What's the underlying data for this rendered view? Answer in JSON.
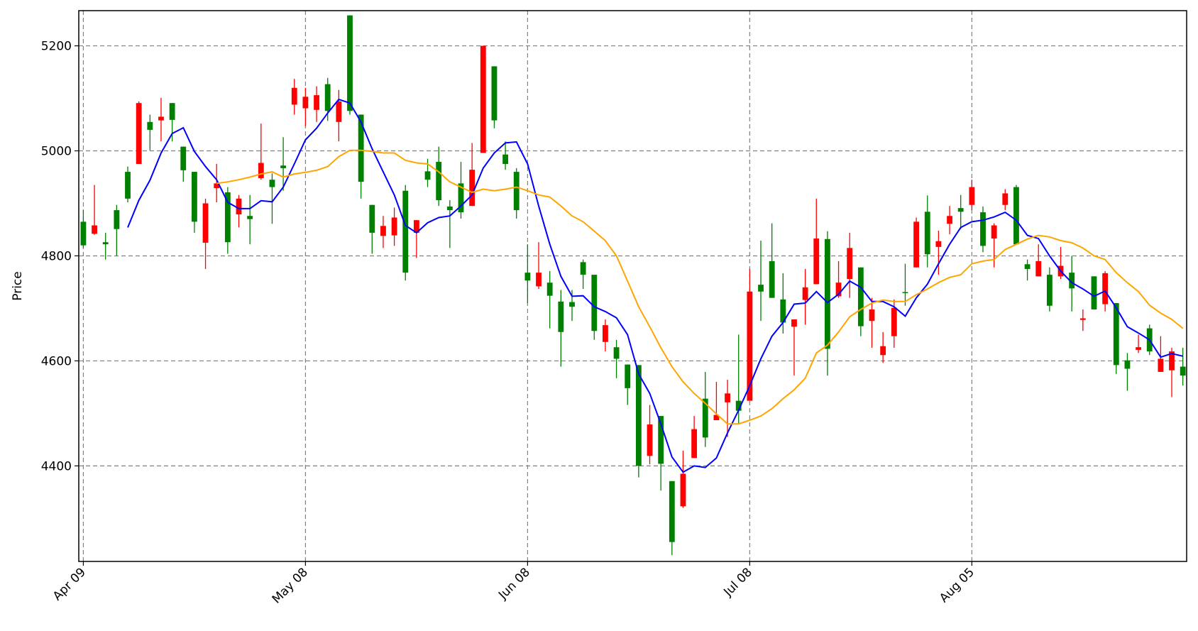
{
  "chart_data": {
    "type": "candlestick",
    "ylabel": "Price",
    "categories": [
      "Apr 09",
      null,
      null,
      null,
      null,
      null,
      null,
      null,
      null,
      null,
      null,
      null,
      null,
      null,
      null,
      null,
      null,
      null,
      null,
      null,
      "May 08",
      null,
      null,
      null,
      null,
      null,
      null,
      null,
      null,
      null,
      null,
      null,
      null,
      null,
      null,
      null,
      null,
      null,
      null,
      null,
      "Jun 08",
      null,
      null,
      null,
      null,
      null,
      null,
      null,
      null,
      null,
      null,
      null,
      null,
      null,
      null,
      null,
      null,
      null,
      null,
      null,
      "Jul 08",
      null,
      null,
      null,
      null,
      null,
      null,
      null,
      null,
      null,
      null,
      null,
      null,
      null,
      null,
      null,
      null,
      null,
      null,
      null,
      "Aug 05",
      null,
      null,
      null,
      null,
      null,
      null,
      null,
      null,
      null,
      null,
      null,
      null,
      null,
      null,
      null,
      null,
      null,
      null,
      null
    ],
    "open": [
      4820,
      4858,
      4822,
      4851,
      4909,
      5091,
      5040,
      5065,
      5059,
      4963,
      4865,
      4900,
      4938,
      4826,
      4909,
      4870,
      4977,
      4931,
      4967,
      5120,
      5103,
      5106,
      5076,
      5094,
      5076,
      4941,
      4844,
      4857,
      4873,
      4768,
      4868,
      4945,
      4906,
      4887,
      4883,
      4964,
      5200,
      5058,
      4975,
      4887,
      4753,
      4768,
      4724,
      4655,
      4703,
      4764,
      4657,
      4668,
      4604,
      4548,
      4400,
      4479,
      4404,
      4255,
      4385,
      4470,
      4454,
      4497,
      4538,
      4505,
      4732,
      4732,
      4720,
      4673,
      4679,
      4740,
      4833,
      4623,
      4749,
      4815,
      4666,
      4698,
      4628,
      4701,
      4729,
      4865,
      4803,
      4828,
      4876,
      4884,
      4931,
      4819,
      4858,
      4919,
      4822,
      4775,
      4790,
      4705,
      4781,
      4738,
      4681,
      4698,
      4767,
      4592,
      4585,
      4626,
      4618,
      4604,
      4618,
      4572
    ],
    "high": [
      4887,
      4935,
      4844,
      4897,
      4970,
      5094,
      5069,
      5101,
      5091,
      5008,
      4960,
      4909,
      4975,
      4931,
      4916,
      4916,
      5052,
      4957,
      5026,
      5137,
      5120,
      5123,
      5139,
      5116,
      5258,
      5069,
      4897,
      4876,
      4892,
      4935,
      4868,
      4985,
      5008,
      4906,
      4979,
      5015,
      5200,
      5161,
      5018,
      4967,
      4822,
      4826,
      4771,
      4735,
      4735,
      4793,
      4764,
      4679,
      4640,
      4593,
      4592,
      4516,
      4495,
      4371,
      4429,
      4495,
      4579,
      4560,
      4564,
      4650,
      4775,
      4829,
      4862,
      4767,
      4679,
      4775,
      4909,
      4847,
      4790,
      4844,
      4778,
      4720,
      4655,
      4717,
      4785,
      4873,
      4915,
      4848,
      4895,
      4916,
      4945,
      4894,
      4862,
      4927,
      4935,
      4793,
      4822,
      4778,
      4817,
      4800,
      4698,
      4761,
      4771,
      4710,
      4615,
      4650,
      4669,
      4647,
      4625,
      4625
    ],
    "low": [
      4815,
      4840,
      4793,
      4800,
      4902,
      4975,
      5001,
      5018,
      5018,
      4941,
      4844,
      4775,
      4902,
      4804,
      4854,
      4822,
      4945,
      4861,
      4924,
      5069,
      5047,
      5055,
      5057,
      5018,
      5069,
      4909,
      4804,
      4815,
      4819,
      4753,
      4796,
      4931,
      4895,
      4815,
      4871,
      4895,
      4996,
      5043,
      4964,
      4871,
      4710,
      4737,
      4662,
      4589,
      4676,
      4737,
      4640,
      4618,
      4567,
      4516,
      4378,
      4403,
      4353,
      4230,
      4320,
      4415,
      4436,
      4487,
      4455,
      4480,
      4524,
      4676,
      4720,
      4652,
      4572,
      4669,
      4746,
      4572,
      4720,
      4720,
      4647,
      4625,
      4596,
      4625,
      4705,
      4778,
      4778,
      4764,
      4841,
      4851,
      4887,
      4807,
      4778,
      4887,
      4822,
      4753,
      4761,
      4694,
      4756,
      4694,
      4657,
      4698,
      4694,
      4575,
      4543,
      4615,
      4611,
      4579,
      4531,
      4553
    ],
    "close": [
      4865,
      4842,
      4826,
      4887,
      4960,
      4975,
      5055,
      5058,
      5091,
      5008,
      4960,
      4825,
      4929,
      4921,
      4879,
      4876,
      4948,
      4945,
      4972,
      5088,
      5081,
      5078,
      5127,
      5055,
      5258,
      5069,
      4897,
      4838,
      4839,
      4924,
      4844,
      4961,
      4979,
      4894,
      4938,
      4895,
      4996,
      5161,
      4993,
      4960,
      4768,
      4742,
      4749,
      4713,
      4712,
      4788,
      4764,
      4636,
      4626,
      4593,
      4592,
      4419,
      4495,
      4371,
      4323,
      4415,
      4528,
      4487,
      4521,
      4524,
      4524,
      4745,
      4790,
      4717,
      4665,
      4716,
      4746,
      4832,
      4723,
      4756,
      4778,
      4676,
      4611,
      4647,
      4731,
      4778,
      4884,
      4817,
      4861,
      4891,
      4897,
      4883,
      4833,
      4897,
      4931,
      4784,
      4761,
      4764,
      4761,
      4768,
      4678,
      4761,
      4708,
      4710,
      4601,
      4621,
      4662,
      4579,
      4582,
      4589
    ],
    "up_color": "#008000",
    "down_color": "#ff0000",
    "series": [
      {
        "color": "#0000ff",
        "values": [
          null,
          null,
          null,
          null,
          4854,
          4906,
          4944,
          4996,
          5033,
          5044,
          4999,
          4970,
          4945,
          4902,
          4890,
          4890,
          4905,
          4903,
          4931,
          4975,
          5021,
          5043,
          5072,
          5098,
          5091,
          5055,
          5004,
          4960,
          4916,
          4858,
          4844,
          4863,
          4873,
          4876,
          4895,
          4916,
          4967,
          4996,
          5015,
          5017,
          4975,
          4895,
          4822,
          4761,
          4723,
          4724,
          4703,
          4694,
          4682,
          4650,
          4575,
          4538,
          4480,
          4417,
          4388,
          4400,
          4397,
          4415,
          4463,
          4506,
          4553,
          4604,
          4647,
          4673,
          4708,
          4710,
          4732,
          4711,
          4727,
          4752,
          4740,
          4713,
          4713,
          4703,
          4685,
          4720,
          4746,
          4785,
          4822,
          4854,
          4865,
          4868,
          4874,
          4883,
          4868,
          4839,
          4833,
          4800,
          4771,
          4749,
          4737,
          4723,
          4733,
          4701,
          4665,
          4653,
          4640,
          4607,
          4614,
          4609
        ]
      },
      {
        "color": "#ffa500",
        "values": [
          null,
          null,
          null,
          null,
          null,
          null,
          null,
          null,
          null,
          null,
          null,
          null,
          4938,
          4941,
          4945,
          4950,
          4956,
          4960,
          4950,
          4956,
          4959,
          4963,
          4970,
          4989,
          5001,
          5001,
          4999,
          4996,
          4996,
          4982,
          4977,
          4975,
          4960,
          4941,
          4931,
          4921,
          4927,
          4924,
          4927,
          4931,
          4924,
          4916,
          4912,
          4895,
          4876,
          4865,
          4847,
          4829,
          4800,
          4752,
          4703,
          4665,
          4625,
          4589,
          4560,
          4538,
          4519,
          4499,
          4480,
          4480,
          4487,
          4495,
          4509,
          4528,
          4545,
          4567,
          4615,
          4630,
          4655,
          4684,
          4698,
          4710,
          4716,
          4713,
          4713,
          4726,
          4737,
          4749,
          4759,
          4764,
          4785,
          4790,
          4793,
          4812,
          4822,
          4832,
          4839,
          4836,
          4829,
          4825,
          4815,
          4800,
          4793,
          4768,
          4749,
          4732,
          4706,
          4691,
          4679,
          4662
        ]
      }
    ],
    "ylim": [
      4218,
      5267
    ],
    "yticks": [
      4400,
      4600,
      4800,
      5000,
      5200
    ],
    "grid": true
  }
}
